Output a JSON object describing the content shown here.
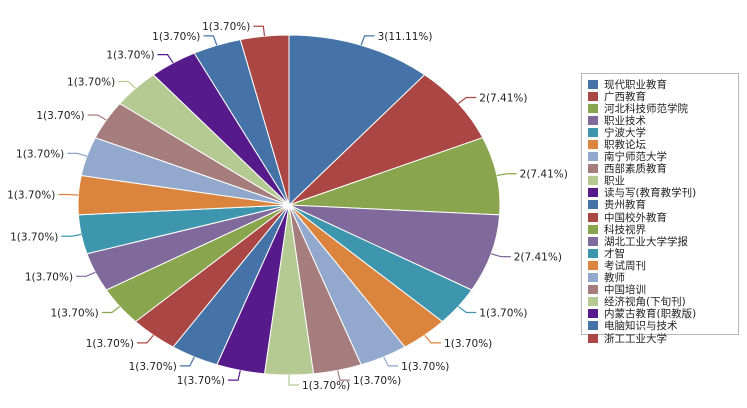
{
  "chart_data": {
    "type": "pie",
    "slices": [
      {
        "name": "现代职业教育",
        "value": 3,
        "label": "3(11.11%)",
        "color": "#4572a7"
      },
      {
        "name": "广西教育",
        "value": 2,
        "label": "2(7.41%)",
        "color": "#aa4643"
      },
      {
        "name": "河北科技师范学院",
        "value": 2,
        "label": "2(7.41%)",
        "color": "#89a54e"
      },
      {
        "name": "职业技术",
        "value": 2,
        "label": "2(7.41%)",
        "color": "#80699b"
      },
      {
        "name": "宁波大学",
        "value": 1,
        "label": "1(3.70%)",
        "color": "#3d96ae"
      },
      {
        "name": "职教论坛",
        "value": 1,
        "label": "1(3.70%)",
        "color": "#db843d"
      },
      {
        "name": "南宁师范大学",
        "value": 1,
        "label": "1(3.70%)",
        "color": "#92a8cd"
      },
      {
        "name": "西部素质教育",
        "value": 1,
        "label": "1(3.70%)",
        "color": "#a47d7c"
      },
      {
        "name": "职业",
        "value": 1,
        "label": "1(3.70%)",
        "color": "#b5ca92"
      },
      {
        "name": "读与写(教育教学刊)",
        "value": 1,
        "label": "1(3.70%)",
        "color": "#561a8b"
      },
      {
        "name": "贵州教育",
        "value": 1,
        "label": "1(3.70%)",
        "color": "#4572a7"
      },
      {
        "name": "中国校外教育",
        "value": 1,
        "label": "1(3.70%)",
        "color": "#aa4643"
      },
      {
        "name": "科技视界",
        "value": 1,
        "label": "1(3.70%)",
        "color": "#89a54e"
      },
      {
        "name": "湖北工业大学学报",
        "value": 1,
        "label": "1(3.70%)",
        "color": "#80699b"
      },
      {
        "name": "才智",
        "value": 1,
        "label": "1(3.70%)",
        "color": "#3d96ae"
      },
      {
        "name": "考试周刊",
        "value": 1,
        "label": "1(3.70%)",
        "color": "#db843d"
      },
      {
        "name": "教师",
        "value": 1,
        "label": "1(3.70%)",
        "color": "#92a8cd"
      },
      {
        "name": "中国培训",
        "value": 1,
        "label": "1(3.70%)",
        "color": "#a47d7c"
      },
      {
        "name": "经济视角(下旬刊)",
        "value": 1,
        "label": "1(3.70%)",
        "color": "#b5ca92"
      },
      {
        "name": "内蒙古教育(职教版)",
        "value": 1,
        "label": "1(3.70%)",
        "color": "#561a8b"
      },
      {
        "name": "电脑知识与技术",
        "value": 1,
        "label": "1(3.70%)",
        "color": "#4572a7"
      },
      {
        "name": "浙工工业大学",
        "value": 1,
        "label": "1(3.70%)",
        "color": "#aa4643"
      }
    ],
    "legend_position": "right"
  }
}
